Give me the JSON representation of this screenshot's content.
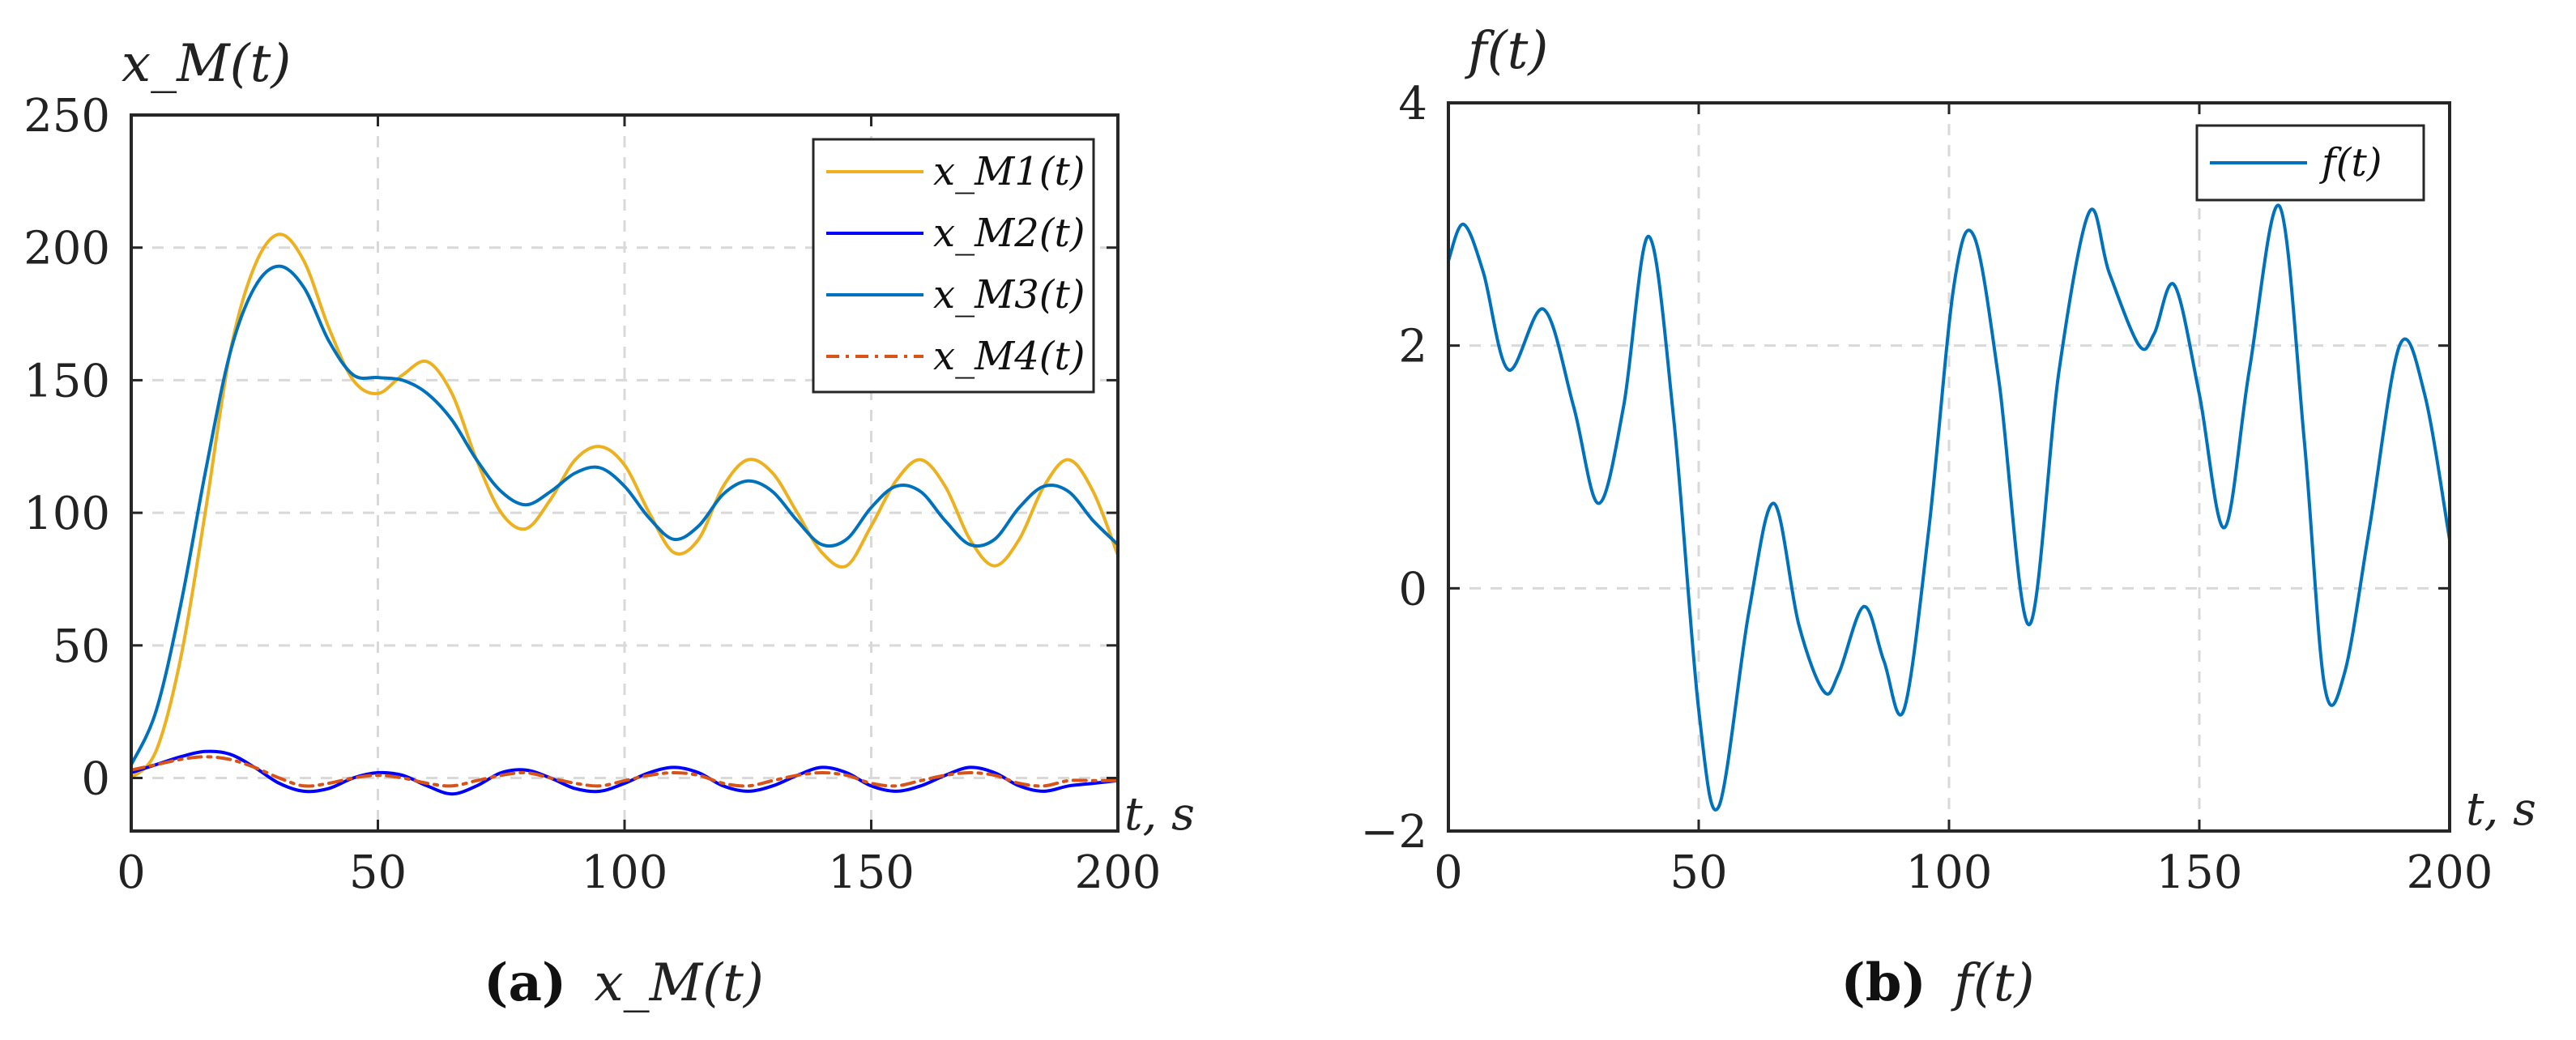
{
  "chart_data": [
    {
      "type": "line",
      "panel_label": "(a)",
      "caption": "x_M(t)",
      "title": "",
      "ylabel": "x_M(t)",
      "xlabel": "t, s",
      "xlim": [
        0,
        200
      ],
      "ylim": [
        -20,
        250
      ],
      "xticks": [
        0,
        50,
        100,
        150,
        200
      ],
      "yticks": [
        0,
        50,
        100,
        150,
        200,
        250
      ],
      "grid": true,
      "legend_position": "top-right",
      "series": [
        {
          "name": "x_M1(t)",
          "color": "#EDB120",
          "dash": "solid",
          "x": [
            0,
            5,
            10,
            15,
            20,
            25,
            30,
            35,
            40,
            45,
            50,
            55,
            60,
            65,
            70,
            75,
            80,
            85,
            90,
            95,
            100,
            105,
            110,
            115,
            120,
            125,
            130,
            135,
            140,
            145,
            150,
            155,
            160,
            165,
            170,
            175,
            180,
            185,
            190,
            195,
            200
          ],
          "y": [
            0,
            10,
            45,
            100,
            160,
            193,
            205,
            195,
            170,
            150,
            145,
            152,
            157,
            145,
            120,
            100,
            94,
            105,
            120,
            125,
            118,
            100,
            85,
            90,
            110,
            120,
            115,
            100,
            85,
            80,
            95,
            112,
            120,
            110,
            90,
            80,
            90,
            110,
            120,
            108,
            84
          ]
        },
        {
          "name": "x_M2(t)",
          "color": "#0000FF",
          "dash": "solid",
          "x": [
            0,
            5,
            10,
            15,
            20,
            25,
            30,
            35,
            40,
            45,
            50,
            55,
            60,
            65,
            70,
            75,
            80,
            85,
            90,
            95,
            100,
            105,
            110,
            115,
            120,
            125,
            130,
            135,
            140,
            145,
            150,
            155,
            160,
            165,
            170,
            175,
            180,
            185,
            190,
            195,
            200
          ],
          "y": [
            2,
            5,
            8,
            10,
            9,
            4,
            -2,
            -5,
            -4,
            0,
            2,
            1,
            -3,
            -6,
            -3,
            2,
            3,
            0,
            -4,
            -5,
            -2,
            2,
            4,
            2,
            -3,
            -5,
            -3,
            1,
            4,
            2,
            -3,
            -5,
            -3,
            1,
            4,
            2,
            -3,
            -5,
            -3,
            -2,
            -1
          ]
        },
        {
          "name": "x_M3(t)",
          "color": "#0072BD",
          "dash": "solid",
          "x": [
            0,
            5,
            10,
            15,
            20,
            25,
            30,
            35,
            40,
            45,
            50,
            55,
            60,
            65,
            70,
            75,
            80,
            85,
            90,
            95,
            100,
            105,
            110,
            115,
            120,
            125,
            130,
            135,
            140,
            145,
            150,
            155,
            160,
            165,
            170,
            175,
            180,
            185,
            190,
            195,
            200
          ],
          "y": [
            5,
            25,
            65,
            115,
            160,
            185,
            193,
            185,
            165,
            152,
            151,
            150,
            145,
            135,
            120,
            108,
            103,
            108,
            115,
            117,
            110,
            98,
            90,
            95,
            107,
            112,
            108,
            97,
            88,
            90,
            102,
            110,
            108,
            97,
            88,
            90,
            102,
            110,
            108,
            97,
            88
          ]
        },
        {
          "name": "x_M4(t)",
          "color": "#D95319",
          "dash": "dashdot",
          "x": [
            0,
            5,
            10,
            15,
            20,
            25,
            30,
            35,
            40,
            45,
            50,
            55,
            60,
            65,
            70,
            75,
            80,
            85,
            90,
            95,
            100,
            105,
            110,
            115,
            120,
            125,
            130,
            135,
            140,
            145,
            150,
            155,
            160,
            165,
            170,
            175,
            180,
            185,
            190,
            195,
            200
          ],
          "y": [
            3,
            5,
            7,
            8,
            7,
            4,
            0,
            -3,
            -2,
            0,
            1,
            0,
            -2,
            -3,
            -1,
            1,
            2,
            0,
            -2,
            -3,
            -1,
            1,
            2,
            1,
            -2,
            -3,
            -1,
            1,
            2,
            1,
            -2,
            -3,
            -1,
            1,
            2,
            1,
            -2,
            -3,
            -1,
            -1,
            -1
          ]
        }
      ]
    },
    {
      "type": "line",
      "panel_label": "(b)",
      "caption": "f(t)",
      "title": "",
      "ylabel": "f(t)",
      "xlabel": "t, s",
      "xlim": [
        0,
        200
      ],
      "ylim": [
        -2,
        4
      ],
      "xticks": [
        0,
        50,
        100,
        150,
        200
      ],
      "yticks": [
        -2,
        0,
        2,
        4
      ],
      "grid": true,
      "legend_position": "top-right",
      "series": [
        {
          "name": "f(t)",
          "color": "#0072BD",
          "dash": "solid",
          "x": [
            0,
            3,
            7,
            12,
            19,
            25,
            30,
            35,
            40,
            45,
            50,
            54,
            60,
            65,
            70,
            75,
            78,
            83,
            87,
            91,
            96,
            101,
            105,
            110,
            116,
            122,
            128,
            132,
            138,
            141,
            145,
            150,
            155,
            160,
            166,
            171,
            175,
            179,
            184,
            190,
            195,
            200
          ],
          "y": [
            2.7,
            3.0,
            2.6,
            1.8,
            2.3,
            1.5,
            0.7,
            1.5,
            2.9,
            1.4,
            -1.0,
            -1.8,
            -0.2,
            0.7,
            -0.3,
            -0.85,
            -0.7,
            -0.15,
            -0.6,
            -1.0,
            0.5,
            2.5,
            2.9,
            1.7,
            -0.3,
            1.8,
            3.1,
            2.6,
            2.0,
            2.1,
            2.5,
            1.6,
            0.5,
            1.8,
            3.15,
            1.2,
            -0.8,
            -0.7,
            0.5,
            2.0,
            1.6,
            0.4
          ]
        }
      ]
    }
  ]
}
